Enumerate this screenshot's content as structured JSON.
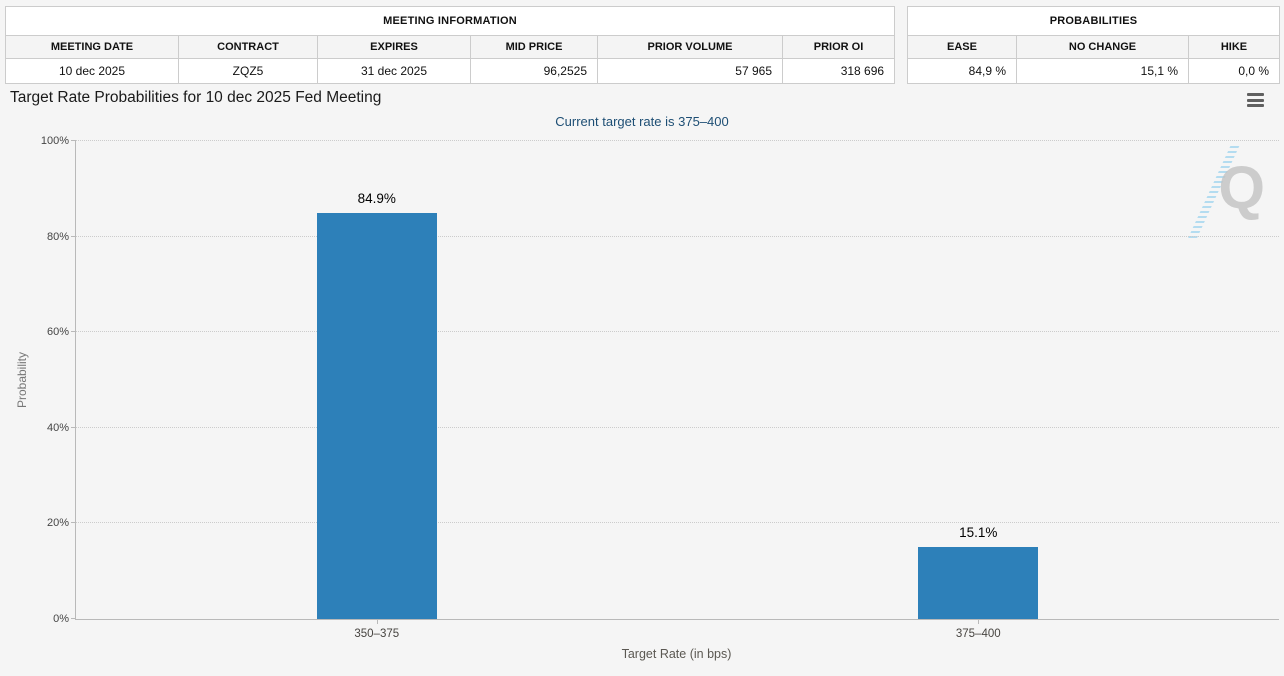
{
  "meeting_information": {
    "title": "MEETING INFORMATION",
    "columns": [
      "MEETING DATE",
      "CONTRACT",
      "EXPIRES",
      "MID PRICE",
      "PRIOR VOLUME",
      "PRIOR OI"
    ],
    "row": {
      "meeting_date": "10 dec 2025",
      "contract": "ZQZ5",
      "expires": "31 dec 2025",
      "mid_price": "96,2525",
      "prior_volume": "57 965",
      "prior_oi": "318 696"
    }
  },
  "probabilities_summary": {
    "title": "PROBABILITIES",
    "columns": [
      "EASE",
      "NO CHANGE",
      "HIKE"
    ],
    "row": {
      "ease": "84,9 %",
      "no_change": "15,1 %",
      "hike": "0,0 %"
    }
  },
  "chart": {
    "title": "Target Rate Probabilities for 10 dec 2025 Fed Meeting",
    "subtitle": "Current target rate is 375–400",
    "watermark_letter": "Q"
  },
  "chart_data": {
    "type": "bar",
    "title": "Target Rate Probabilities for 10 dec 2025 Fed Meeting",
    "subtitle": "Current target rate is 375–400",
    "categories": [
      "350–375",
      "375–400"
    ],
    "values": [
      84.9,
      15.1
    ],
    "value_labels": [
      "84.9%",
      "15.1%"
    ],
    "xlabel": "Target Rate (in bps)",
    "ylabel": "Probability",
    "ylim": [
      0,
      100
    ],
    "yticks": [
      "0%",
      "20%",
      "40%",
      "60%",
      "80%",
      "100%"
    ],
    "grid": "dotted-horizontal",
    "legend": "none",
    "colors": {
      "bar": "#2d80b9",
      "subtitle": "#1d4e74"
    }
  }
}
